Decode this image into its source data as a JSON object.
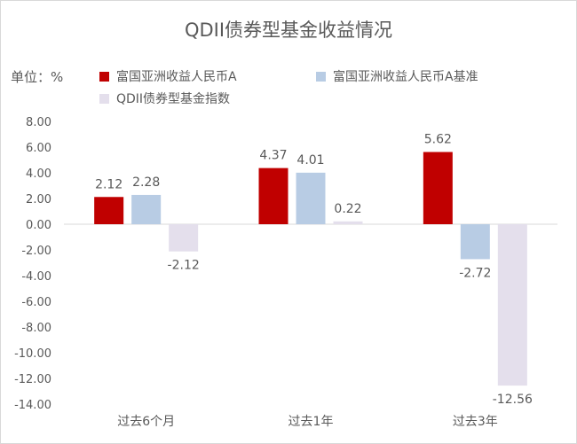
{
  "chart_data": {
    "type": "bar",
    "title": "QDII债券型基金收益情况",
    "unit_label": "单位：%",
    "categories": [
      "过去6个月",
      "过去1年",
      "过去3年"
    ],
    "series": [
      {
        "name": "富国亚洲收益人民币A",
        "values": [
          2.12,
          4.37,
          5.62
        ],
        "color": "#c00000"
      },
      {
        "name": "富国亚洲收益人民币A基准",
        "values": [
          2.28,
          4.01,
          -2.72
        ],
        "color": "#b8cce4"
      },
      {
        "name": "QDII债券型基金指数",
        "values": [
          -2.12,
          0.22,
          -12.56
        ],
        "color": "#e4dfec"
      }
    ],
    "y_ticks": [
      "8.00",
      "6.00",
      "4.00",
      "2.00",
      "0.00",
      "-2.00",
      "-4.00",
      "-6.00",
      "-8.00",
      "-10.00",
      "-12.00",
      "-14.00"
    ],
    "ylim": [
      -14,
      8
    ],
    "legend_position": "top"
  }
}
